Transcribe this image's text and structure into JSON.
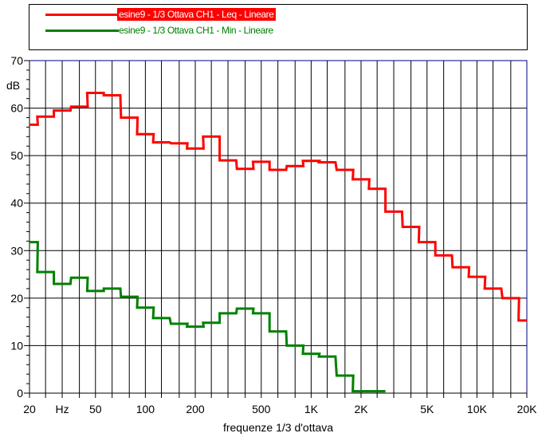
{
  "chart_data": {
    "type": "line",
    "series": [
      {
        "name": "esine9 - 1/3 Ottava CH1 - Leq - Lineare",
        "color": "#ff0000",
        "x": [
          "20",
          "25",
          "31.5",
          "40",
          "50",
          "63",
          "80",
          "100",
          "125",
          "160",
          "200",
          "250",
          "315",
          "400",
          "500",
          "630",
          "800",
          "1K",
          "1.25K",
          "1.6K",
          "2K",
          "2.5K",
          "3.15K",
          "4K",
          "5K",
          "6.3K",
          "8K",
          "10K",
          "12.5K",
          "16K",
          "20K"
        ],
        "values": [
          56.5,
          58.2,
          59.5,
          60.3,
          63.2,
          62.7,
          58.0,
          54.5,
          52.8,
          52.6,
          51.5,
          54.0,
          49.0,
          47.2,
          48.7,
          47.0,
          47.8,
          48.9,
          48.6,
          47.0,
          45.0,
          43.0,
          38.2,
          35.0,
          31.8,
          29.0,
          26.5,
          24.5,
          22.0,
          20.0,
          15.3
        ]
      },
      {
        "name": "esine9 - 1/3 Ottava CH1 - Min - Lineare",
        "color": "#008000",
        "x": [
          "20",
          "25",
          "31.5",
          "40",
          "50",
          "63",
          "80",
          "100",
          "125",
          "160",
          "200",
          "250",
          "315",
          "400",
          "500",
          "630",
          "800",
          "1K",
          "1.25K",
          "1.6K",
          "2K",
          "2.5K"
        ],
        "values": [
          31.8,
          25.5,
          23.0,
          24.3,
          21.5,
          22.0,
          20.3,
          18.0,
          15.8,
          14.6,
          14.0,
          14.8,
          16.8,
          17.8,
          16.8,
          13.0,
          10.0,
          8.3,
          7.7,
          3.7,
          0.4,
          0.4
        ]
      }
    ],
    "title": "",
    "xlabel": "frequenze 1/3 d'ottava",
    "ylabel": "dB",
    "ylim": [
      0,
      70
    ],
    "xlim": [
      "20",
      "20K"
    ],
    "x_scale": "log",
    "grid": true,
    "legend_position": "top",
    "y_ticks": [
      "0",
      "10",
      "20",
      "30",
      "40",
      "50",
      "60",
      "70"
    ],
    "x_tick_labels": [
      {
        "f": 20,
        "label": "20"
      },
      {
        "f": 31.5,
        "label": "Hz"
      },
      {
        "f": 50,
        "label": "50"
      },
      {
        "f": 100,
        "label": "100"
      },
      {
        "f": 200,
        "label": "200"
      },
      {
        "f": 500,
        "label": "500"
      },
      {
        "f": 1000,
        "label": "1K"
      },
      {
        "f": 2000,
        "label": "2K"
      },
      {
        "f": 5000,
        "label": "5K"
      },
      {
        "f": 10000,
        "label": "10K"
      },
      {
        "f": 20000,
        "label": "20K"
      }
    ],
    "x_gridlines": [
      20,
      25,
      31.5,
      40,
      50,
      63,
      80,
      100,
      125,
      160,
      200,
      250,
      315,
      400,
      500,
      630,
      800,
      1000,
      1250,
      1600,
      2000,
      2500,
      3150,
      4000,
      5000,
      6300,
      8000,
      10000,
      12500,
      16000,
      20000
    ]
  },
  "legend": {
    "items": [
      {
        "label": "esine9 - 1/3 Ottava CH1 - Leq - Lineare",
        "color": "#ff0000",
        "text_bg": "#ff0000",
        "text_color": "#ffffff"
      },
      {
        "label": "esine9 - 1/3 Ottava CH1 - Min - Lineare",
        "color": "#008000",
        "text_bg": "transparent",
        "text_color": "#008000"
      }
    ]
  }
}
